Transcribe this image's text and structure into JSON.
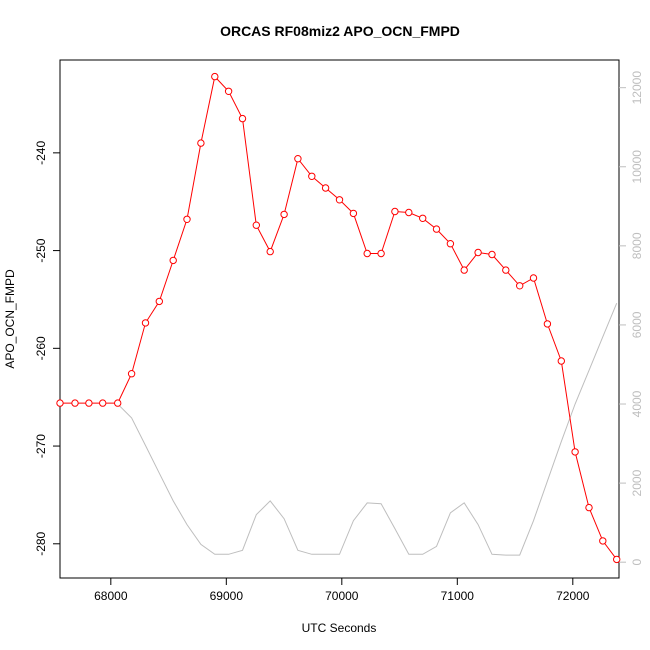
{
  "chart_data": {
    "type": "line",
    "title": "ORCAS RF08miz2 APO_OCN_FMPD",
    "xlabel": "UTC Seconds",
    "ylabel": "APO_OCN_FMPD",
    "xlim": [
      67560,
      72400
    ],
    "ylim": [
      -283.5,
      -230.5
    ],
    "y2lim": [
      -400,
      12700
    ],
    "x_ticks": [
      68000,
      69000,
      70000,
      71000,
      72000
    ],
    "y_ticks": [
      -280,
      -270,
      -260,
      -250,
      -240
    ],
    "y2_ticks": [
      0,
      2000,
      4000,
      6000,
      8000,
      10000,
      12000
    ],
    "grid": false,
    "colors": {
      "primary": "#ff0000",
      "secondary": "#bebebe",
      "axis": "#000000"
    },
    "series": [
      {
        "axis": "left",
        "style": "line+points",
        "x": [
          67560,
          67690,
          67810,
          67930,
          68060,
          68180,
          68300,
          68420,
          68540,
          68660,
          68780,
          68900,
          69020,
          69140,
          69260,
          69380,
          69500,
          69620,
          69740,
          69860,
          69980,
          70100,
          70220,
          70340,
          70460,
          70580,
          70700,
          70820,
          70940,
          71060,
          71180,
          71300,
          71420,
          71540,
          71660,
          71780,
          71900,
          72020,
          72140,
          72260,
          72380
        ],
        "y": [
          -265.6,
          -265.6,
          -265.6,
          -265.6,
          -265.6,
          -262.6,
          -257.4,
          -255.2,
          -251.0,
          -246.8,
          -239.0,
          -232.2,
          -233.7,
          -236.5,
          -247.4,
          -250.1,
          -246.3,
          -240.6,
          -242.4,
          -243.6,
          -244.8,
          -246.2,
          -250.3,
          -250.3,
          -246.0,
          -246.1,
          -246.7,
          -247.8,
          -249.3,
          -252.0,
          -250.2,
          -250.4,
          -252.0,
          -253.6,
          -252.8,
          -257.5,
          -261.3,
          -270.6,
          -276.3,
          -279.7,
          -281.6
        ]
      },
      {
        "axis": "right",
        "style": "line",
        "x": [
          68060,
          68180,
          68300,
          68420,
          68540,
          68660,
          68780,
          68900,
          69020,
          69140,
          69260,
          69380,
          69500,
          69620,
          69740,
          69860,
          69980,
          70100,
          70220,
          70340,
          70460,
          70580,
          70700,
          70820,
          70940,
          71060,
          71180,
          71300,
          71420,
          71540,
          71660,
          71780,
          71900,
          72020,
          72140,
          72260,
          72380
        ],
        "y": [
          4000,
          3650,
          2950,
          2250,
          1550,
          950,
          450,
          200,
          200,
          300,
          1200,
          1550,
          1100,
          300,
          200,
          200,
          200,
          1050,
          1500,
          1480,
          850,
          200,
          200,
          400,
          1250,
          1500,
          950,
          200,
          180,
          180,
          1050,
          2050,
          3050,
          4000,
          4850,
          5700,
          6550
        ]
      }
    ]
  }
}
